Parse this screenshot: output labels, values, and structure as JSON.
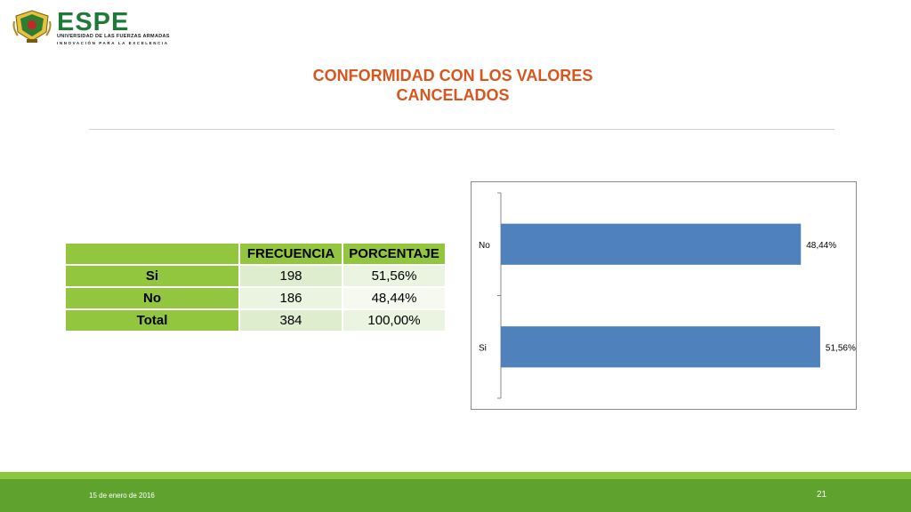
{
  "logo": {
    "name": "ESPE",
    "tagline": "UNIVERSIDAD DE LAS FUERZAS ARMADAS",
    "motto": "INNOVACIÓN PARA LA EXCELENCIA"
  },
  "slide": {
    "title_line1": "CONFORMIDAD CON LOS VALORES",
    "title_line2": "CANCELADOS"
  },
  "table": {
    "headers": [
      "",
      "FRECUENCIA",
      "PORCENTAJE"
    ],
    "rows": [
      {
        "label": "Si",
        "frecuencia": "198",
        "porcentaje": "51,56%"
      },
      {
        "label": "No",
        "frecuencia": "186",
        "porcentaje": "48,44%"
      },
      {
        "label": "Total",
        "frecuencia": "384",
        "porcentaje": "100,00%"
      }
    ]
  },
  "chart_data": {
    "type": "bar",
    "orientation": "horizontal",
    "categories": [
      "No",
      "Si"
    ],
    "values": [
      48.44,
      51.56
    ],
    "data_labels": [
      "48,44%",
      "51,56%"
    ],
    "xlim": [
      0,
      52
    ],
    "bar_color": "#4f81bd",
    "grid": false,
    "legend": "none"
  },
  "footer": {
    "date": "15 de enero de 2016",
    "page_number": "21"
  }
}
